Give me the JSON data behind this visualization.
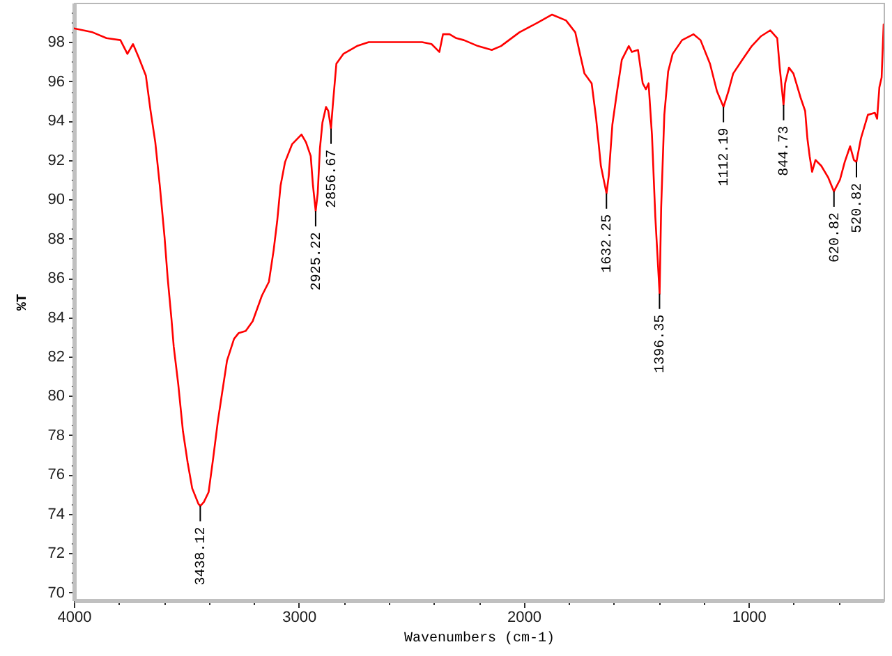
{
  "chart_data": {
    "type": "line",
    "xlabel": "Wavenumbers (cm-1)",
    "ylabel": "%T",
    "x": [
      4000,
      3917,
      3855,
      3793,
      3762,
      3737,
      3711,
      3680,
      3659,
      3638,
      3618,
      3597,
      3583,
      3566,
      3556,
      3536,
      3515,
      3494,
      3474,
      3446,
      3438,
      3422,
      3401,
      3381,
      3360,
      3339,
      3319,
      3288,
      3267,
      3236,
      3205,
      3164,
      3133,
      3112,
      3096,
      3081,
      3061,
      3030,
      2988,
      2968,
      2947,
      2937,
      2925,
      2916,
      2906,
      2895,
      2879,
      2869,
      2857,
      2848,
      2833,
      2802,
      2741,
      2689,
      2452,
      2410,
      2375,
      2359,
      2330,
      2300,
      2266,
      2204,
      2142,
      2101,
      2019,
      1936,
      1874,
      1812,
      1771,
      1750,
      1730,
      1698,
      1678,
      1657,
      1632,
      1622,
      1606,
      1585,
      1564,
      1533,
      1519,
      1492,
      1471,
      1457,
      1445,
      1430,
      1415,
      1396,
      1389,
      1375,
      1358,
      1338,
      1296,
      1245,
      1214,
      1172,
      1141,
      1112,
      1090,
      1069,
      1028,
      986,
      945,
      904,
      873,
      862,
      845,
      838,
      821,
      801,
      770,
      749,
      739,
      729,
      718,
      703,
      677,
      646,
      621,
      594,
      573,
      549,
      532,
      521,
      501,
      470,
      439,
      429,
      419,
      409,
      400
    ],
    "series": [
      {
        "color": "#ff0000",
        "values": [
          98.7,
          98.5,
          98.2,
          98.1,
          97.4,
          97.9,
          97.2,
          96.3,
          94.5,
          92.9,
          90.7,
          88.1,
          86.0,
          83.9,
          82.5,
          80.6,
          78.2,
          76.6,
          75.3,
          74.5,
          74.4,
          74.6,
          75.1,
          76.8,
          78.7,
          80.3,
          81.8,
          82.9,
          83.2,
          83.3,
          83.8,
          85.1,
          85.8,
          87.4,
          88.9,
          90.7,
          91.9,
          92.8,
          93.3,
          92.9,
          92.2,
          90.7,
          89.4,
          90.3,
          92.6,
          93.9,
          94.7,
          94.5,
          93.6,
          94.9,
          96.9,
          97.4,
          97.8,
          98.0,
          98.0,
          97.9,
          97.5,
          98.4,
          98.4,
          98.2,
          98.1,
          97.8,
          97.6,
          97.8,
          98.5,
          99.0,
          99.4,
          99.1,
          98.5,
          97.4,
          96.4,
          95.9,
          94.1,
          91.7,
          90.3,
          91.2,
          93.8,
          95.5,
          97.1,
          97.8,
          97.5,
          97.6,
          95.9,
          95.6,
          95.9,
          93.3,
          89.1,
          85.2,
          89.6,
          94.3,
          96.5,
          97.4,
          98.1,
          98.4,
          98.1,
          96.9,
          95.5,
          94.7,
          95.5,
          96.4,
          97.1,
          97.8,
          98.3,
          98.6,
          98.2,
          96.7,
          94.8,
          95.9,
          96.7,
          96.4,
          95.2,
          94.5,
          93.1,
          92.2,
          91.4,
          92.0,
          91.7,
          91.1,
          90.4,
          91.0,
          91.9,
          92.7,
          92.0,
          91.9,
          93.1,
          94.3,
          94.4,
          94.1,
          95.7,
          96.2,
          98.9
        ]
      }
    ],
    "xlim": [
      4000,
      400
    ],
    "ylim": [
      69.6,
      100
    ],
    "xticks": [
      4000,
      {
        "value": 3800,
        "label": null
      },
      {
        "value": 3600,
        "label": null
      },
      {
        "value": 3400,
        "label": null
      },
      {
        "value": 3200,
        "label": null
      },
      3000,
      {
        "value": 2800,
        "label": null
      },
      {
        "value": 2600,
        "label": null
      },
      {
        "value": 2400,
        "label": null
      },
      {
        "value": 2200,
        "label": null
      },
      2000,
      {
        "value": 1800,
        "label": null
      },
      {
        "value": 1600,
        "label": null
      },
      {
        "value": 1400,
        "label": null
      },
      {
        "value": 1200,
        "label": null
      },
      1000,
      {
        "value": 800,
        "label": null
      },
      {
        "value": 600,
        "label": null
      }
    ],
    "yticks": [
      70,
      {
        "value": 70.5,
        "label": null
      },
      {
        "value": 71,
        "label": null
      },
      {
        "value": 71.5,
        "label": null
      },
      72,
      {
        "value": 72.5,
        "label": null
      },
      {
        "value": 73,
        "label": null
      },
      {
        "value": 73.5,
        "label": null
      },
      74,
      {
        "value": 74.5,
        "label": null
      },
      {
        "value": 75,
        "label": null
      },
      {
        "value": 75.5,
        "label": null
      },
      76,
      {
        "value": 76.5,
        "label": null
      },
      {
        "value": 77,
        "label": null
      },
      {
        "value": 77.5,
        "label": null
      },
      78,
      {
        "value": 78.5,
        "label": null
      },
      {
        "value": 79,
        "label": null
      },
      {
        "value": 79.5,
        "label": null
      },
      80,
      {
        "value": 80.5,
        "label": null
      },
      {
        "value": 81,
        "label": null
      },
      {
        "value": 81.5,
        "label": null
      },
      82,
      {
        "value": 82.5,
        "label": null
      },
      {
        "value": 83,
        "label": null
      },
      {
        "value": 83.5,
        "label": null
      },
      84,
      {
        "value": 84.5,
        "label": null
      },
      {
        "value": 85,
        "label": null
      },
      {
        "value": 85.5,
        "label": null
      },
      86,
      {
        "value": 86.5,
        "label": null
      },
      {
        "value": 87,
        "label": null
      },
      {
        "value": 87.5,
        "label": null
      },
      88,
      {
        "value": 88.5,
        "label": null
      },
      {
        "value": 89,
        "label": null
      },
      {
        "value": 89.5,
        "label": null
      },
      90,
      {
        "value": 90.5,
        "label": null
      },
      {
        "value": 91,
        "label": null
      },
      {
        "value": 91.5,
        "label": null
      },
      92,
      {
        "value": 92.5,
        "label": null
      },
      {
        "value": 93,
        "label": null
      },
      {
        "value": 93.5,
        "label": null
      },
      94,
      {
        "value": 94.5,
        "label": null
      },
      {
        "value": 95,
        "label": null
      },
      {
        "value": 95.5,
        "label": null
      },
      96,
      {
        "value": 96.5,
        "label": null
      },
      {
        "value": 97,
        "label": null
      },
      {
        "value": 97.5,
        "label": null
      },
      98,
      {
        "value": 98.5,
        "label": null
      },
      {
        "value": 99,
        "label": null
      },
      {
        "value": 99.5,
        "label": null
      }
    ],
    "grid": false,
    "annotations": [
      {
        "text": "3438.12",
        "x": 3438.12,
        "y": 74.4
      },
      {
        "text": "2925.22",
        "x": 2925.22,
        "y": 89.4
      },
      {
        "text": "2856.67",
        "x": 2856.67,
        "y": 93.6
      },
      {
        "text": "1632.25",
        "x": 1632.25,
        "y": 90.3
      },
      {
        "text": "1396.35",
        "x": 1396.35,
        "y": 85.2
      },
      {
        "text": "1112.19",
        "x": 1112.19,
        "y": 94.7
      },
      {
        "text": "844.73",
        "x": 844.73,
        "y": 94.8
      },
      {
        "text": "620.82",
        "x": 620.82,
        "y": 90.4
      },
      {
        "text": "520.82",
        "x": 520.82,
        "y": 91.9
      }
    ]
  }
}
